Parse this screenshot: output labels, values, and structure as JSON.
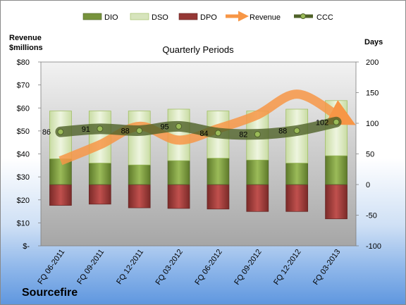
{
  "company": "Sourcefire",
  "chart_data": {
    "type": "bar",
    "title": "Quarterly Periods",
    "left_axis_label": [
      "Revenue",
      "$millions"
    ],
    "right_axis_label": "Days",
    "categories": [
      "FQ 06-2011",
      "FQ 09-2011",
      "FQ 12-2011",
      "FQ 03-2012",
      "FQ 06-2012",
      "FQ 09-2012",
      "FQ 12-2012",
      "FQ 03-2013"
    ],
    "series": [
      {
        "name": "DIO",
        "axis": "right",
        "stacked": true,
        "values": [
          42,
          35,
          32,
          39,
          43,
          40,
          35,
          47
        ],
        "color": "#77933c"
      },
      {
        "name": "DSO",
        "axis": "right",
        "stacked": true,
        "values": [
          78,
          85,
          88,
          84,
          77,
          80,
          88,
          90
        ],
        "color": "#d7e4bd"
      },
      {
        "name": "DPO",
        "axis": "right",
        "stacked": true,
        "values": [
          -34,
          -32,
          -38,
          -39,
          -40,
          -44,
          -44,
          -56
        ],
        "color": "#953735"
      },
      {
        "name": "Revenue",
        "axis": "left",
        "type": "line",
        "values": [
          37,
          44,
          52,
          46,
          51,
          57,
          66,
          57
        ],
        "color": "#f79646"
      },
      {
        "name": "CCC",
        "axis": "right",
        "type": "line",
        "values": [
          86,
          91,
          88,
          95,
          84,
          82,
          88,
          102
        ],
        "color": "#4f6228"
      }
    ],
    "left_axis": {
      "ylim": [
        0,
        80
      ],
      "ticks": [
        "$-",
        "$10",
        "$20",
        "$30",
        "$40",
        "$50",
        "$60",
        "$70",
        "$80"
      ]
    },
    "right_axis": {
      "ylim": [
        -100,
        200
      ],
      "ticks": [
        "-100",
        "-50",
        "0",
        "50",
        "100",
        "150",
        "200"
      ]
    },
    "ccc_labels": [
      "86",
      "91",
      "88",
      "95",
      "84",
      "82",
      "88",
      "102"
    ],
    "legend_position": "top",
    "grid": false
  }
}
